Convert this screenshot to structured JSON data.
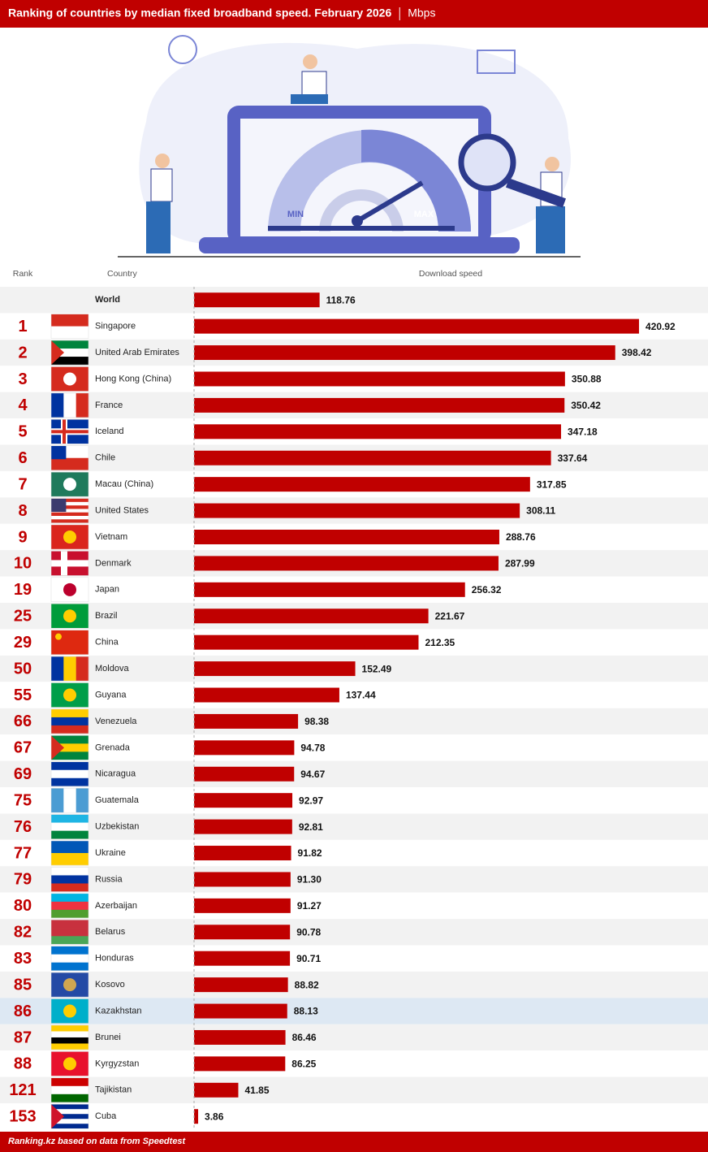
{
  "chart_data": {
    "type": "bar",
    "title": "Ranking of countries by median fixed broadband speed. February 2026",
    "unit": "Mbps",
    "column_headers": [
      "Rank",
      "Country",
      "Download speed"
    ],
    "illustration_labels": [
      "MIN",
      "MAX"
    ],
    "source": "Ranking.kz based on data from Speedtest",
    "color": "#c00000",
    "highlight_color": "#dde8f3",
    "ranks": [
      null,
      1,
      2,
      3,
      4,
      5,
      6,
      7,
      8,
      9,
      10,
      19,
      25,
      29,
      50,
      55,
      66,
      67,
      69,
      75,
      76,
      77,
      79,
      80,
      82,
      83,
      85,
      86,
      87,
      88,
      121,
      153
    ],
    "categories": [
      "World",
      "Singapore",
      "United Arab Emirates",
      "Hong Kong (China)",
      "France",
      "Iceland",
      "Chile",
      "Macau (China)",
      "United States",
      "Vietnam",
      "Denmark",
      "Japan",
      "Brazil",
      "China",
      "Moldova",
      "Guyana",
      "Venezuela",
      "Grenada",
      "Nicaragua",
      "Guatemala",
      "Uzbekistan",
      "Ukraine",
      "Russia",
      "Azerbaijan",
      "Belarus",
      "Honduras",
      "Kosovo",
      "Kazakhstan",
      "Brunei",
      "Kyrgyzstan",
      "Tajikistan",
      "Cuba"
    ],
    "highlight": "Kazakhstan",
    "values": [
      118.76,
      420.92,
      398.42,
      350.88,
      350.42,
      347.18,
      337.64,
      317.85,
      308.11,
      288.76,
      287.99,
      256.32,
      221.67,
      212.35,
      152.49,
      137.44,
      98.38,
      94.78,
      94.67,
      92.97,
      92.81,
      91.82,
      91.3,
      91.27,
      90.78,
      90.71,
      88.82,
      88.13,
      86.46,
      86.25,
      41.85,
      3.86
    ],
    "value_labels": [
      "118.76",
      "420.92",
      "398.42",
      "350.88",
      "350.42",
      "347.18",
      "337.64",
      "317.85",
      "308.11",
      "288.76",
      "287.99",
      "256.32",
      "221.67",
      "212.35",
      "152.49",
      "137.44",
      "98.38",
      "94.78",
      "94.67",
      "92.97",
      "92.81",
      "91.82",
      "91.30",
      "91.27",
      "90.78",
      "90.71",
      "88.82",
      "88.13",
      "86.46",
      "86.25",
      "41.85",
      "3.86"
    ]
  }
}
